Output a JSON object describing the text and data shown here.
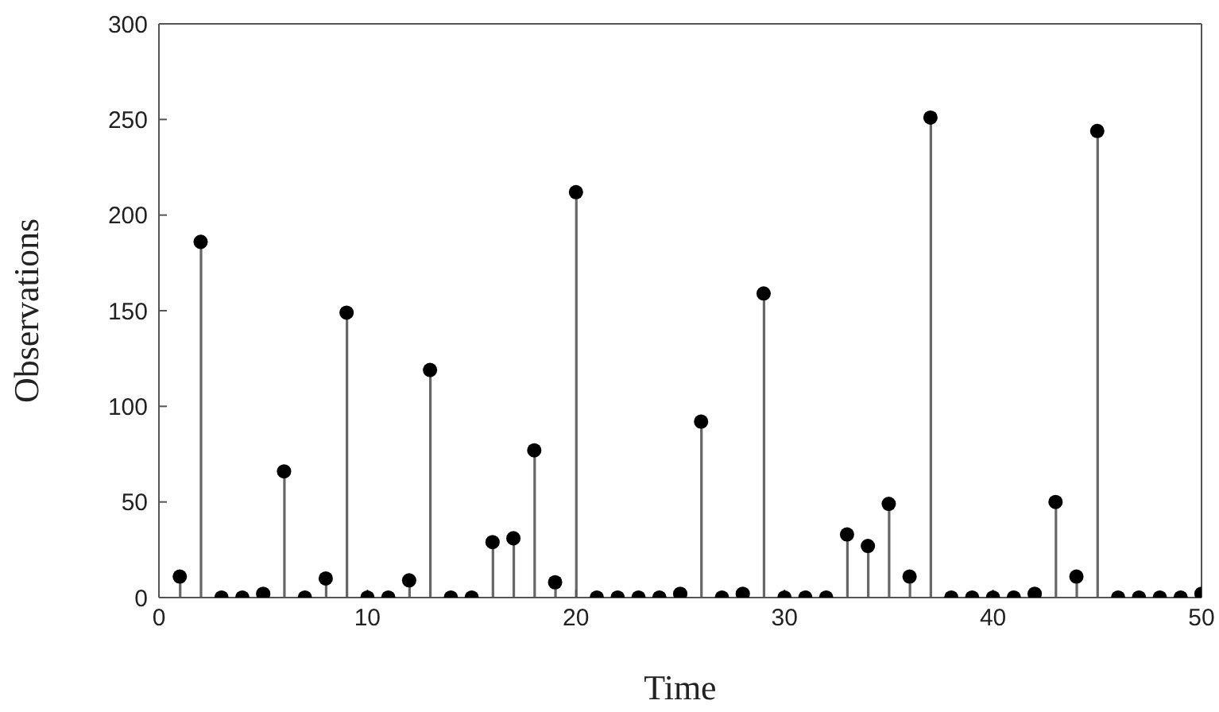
{
  "chart_data": {
    "type": "lollipop",
    "xlabel": "Time",
    "ylabel": "Observations",
    "x": [
      1,
      2,
      3,
      4,
      5,
      6,
      7,
      8,
      9,
      10,
      11,
      12,
      13,
      14,
      15,
      16,
      17,
      18,
      19,
      20,
      21,
      22,
      23,
      24,
      25,
      26,
      27,
      28,
      29,
      30,
      31,
      32,
      33,
      34,
      35,
      36,
      37,
      38,
      39,
      40,
      41,
      42,
      43,
      44,
      45,
      46,
      47,
      48,
      49,
      50
    ],
    "values": [
      11,
      186,
      0,
      0,
      2,
      66,
      0,
      10,
      149,
      0,
      0,
      9,
      119,
      0,
      0,
      29,
      31,
      77,
      8,
      212,
      0,
      0,
      0,
      0,
      2,
      92,
      0,
      2,
      159,
      0,
      0,
      0,
      33,
      27,
      49,
      11,
      251,
      0,
      0,
      0,
      0,
      2,
      50,
      11,
      244,
      0,
      0,
      0,
      0,
      2
    ],
    "color": "#000000",
    "marker": "circle",
    "grid": false,
    "legend": false,
    "xlim": [
      0,
      50
    ],
    "xticks": [
      0,
      10,
      20,
      30,
      40,
      50
    ],
    "ylim": [
      0,
      300
    ],
    "yticks": [
      0,
      50,
      100,
      150,
      200,
      250,
      300
    ]
  }
}
